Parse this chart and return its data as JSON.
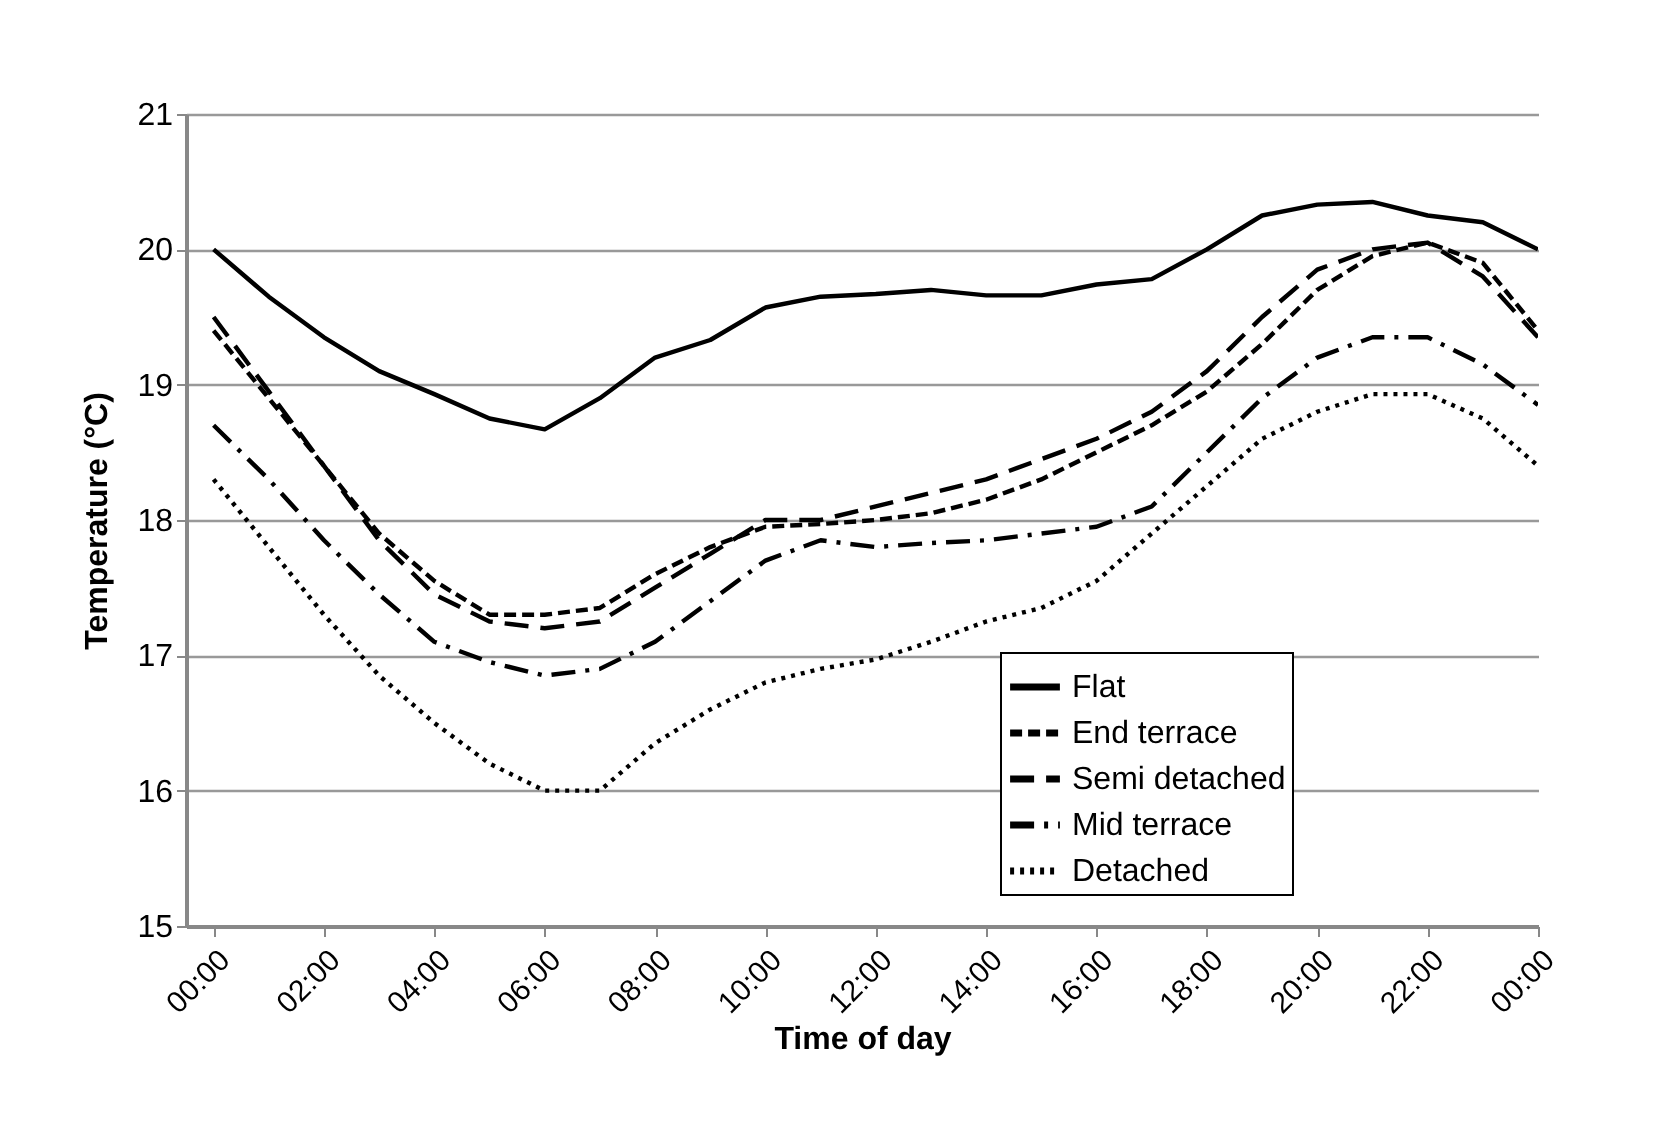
{
  "chart_data": {
    "type": "line",
    "xlabel": "Time of day",
    "ylabel": "Temperature (°C)",
    "x": [
      0,
      1,
      2,
      3,
      4,
      5,
      6,
      7,
      8,
      9,
      10,
      11,
      12,
      13,
      14,
      15,
      16,
      17,
      18,
      19,
      20,
      21,
      22,
      23,
      24
    ],
    "xlim": [
      -0.5,
      24
    ],
    "xticks": [
      {
        "value": 0,
        "label": "00:00"
      },
      {
        "value": 2,
        "label": "02:00"
      },
      {
        "value": 4,
        "label": "04:00"
      },
      {
        "value": 6,
        "label": "06:00"
      },
      {
        "value": 8,
        "label": "08:00"
      },
      {
        "value": 10,
        "label": "10:00"
      },
      {
        "value": 12,
        "label": "12:00"
      },
      {
        "value": 14,
        "label": "14:00"
      },
      {
        "value": 16,
        "label": "16:00"
      },
      {
        "value": 18,
        "label": "18:00"
      },
      {
        "value": 20,
        "label": "20:00"
      },
      {
        "value": 22,
        "label": "22:00"
      },
      {
        "value": 24,
        "label": "00:00"
      }
    ],
    "ylim": [
      15,
      21
    ],
    "yticks": [
      15,
      16,
      17,
      18,
      19,
      20,
      21
    ],
    "grid": "y",
    "legend": "bottom right",
    "series": [
      {
        "name": "Flat",
        "color": "#000000",
        "line_style": "solid",
        "values": [
          20.0,
          19.65,
          19.35,
          19.1,
          18.93,
          18.75,
          18.67,
          18.9,
          19.2,
          19.33,
          19.57,
          19.65,
          19.67,
          19.7,
          19.66,
          19.66,
          19.74,
          19.78,
          20.0,
          20.25,
          20.33,
          20.35,
          20.25,
          20.2,
          20.0
        ]
      },
      {
        "name": "End terrace",
        "color": "#000000",
        "line_style": "dashed",
        "values": [
          19.4,
          18.9,
          18.4,
          17.9,
          17.55,
          17.3,
          17.3,
          17.35,
          17.6,
          17.8,
          17.95,
          17.97,
          18.0,
          18.05,
          18.15,
          18.3,
          18.5,
          18.7,
          18.95,
          19.3,
          19.7,
          19.95,
          20.05,
          19.9,
          19.4
        ]
      },
      {
        "name": "Semi detached",
        "color": "#000000",
        "line_style": "dashed",
        "values": [
          19.5,
          18.95,
          18.4,
          17.85,
          17.45,
          17.25,
          17.2,
          17.25,
          17.5,
          17.75,
          18.0,
          18.0,
          18.1,
          18.2,
          18.3,
          18.45,
          18.6,
          18.8,
          19.1,
          19.5,
          19.85,
          20.0,
          20.05,
          19.8,
          19.35
        ]
      },
      {
        "name": "Mid terrace",
        "color": "#000000",
        "line_style": "dashed",
        "values": [
          18.7,
          18.3,
          17.85,
          17.45,
          17.1,
          16.95,
          16.85,
          16.9,
          17.1,
          17.4,
          17.7,
          17.85,
          17.8,
          17.83,
          17.85,
          17.9,
          17.95,
          18.1,
          18.5,
          18.9,
          19.2,
          19.35,
          19.35,
          19.15,
          18.85
        ]
      },
      {
        "name": "Detached",
        "color": "#000000",
        "line_style": "dotted",
        "values": [
          18.3,
          17.8,
          17.3,
          16.85,
          16.5,
          16.2,
          16.0,
          16.0,
          16.35,
          16.6,
          16.8,
          16.9,
          16.97,
          17.1,
          17.25,
          17.35,
          17.55,
          17.9,
          18.25,
          18.6,
          18.8,
          18.93,
          18.93,
          18.75,
          18.4
        ]
      }
    ]
  }
}
